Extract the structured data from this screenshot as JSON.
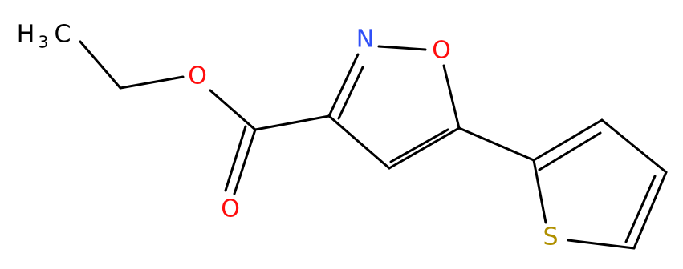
{
  "molecule": {
    "atoms": {
      "methyl_h": "H",
      "methyl_count": "3",
      "methyl_c": "C",
      "ester_o": "O",
      "carbonyl_o": "O",
      "ring_n": "N",
      "ring_o": "O",
      "thiophene_s": "S"
    }
  }
}
